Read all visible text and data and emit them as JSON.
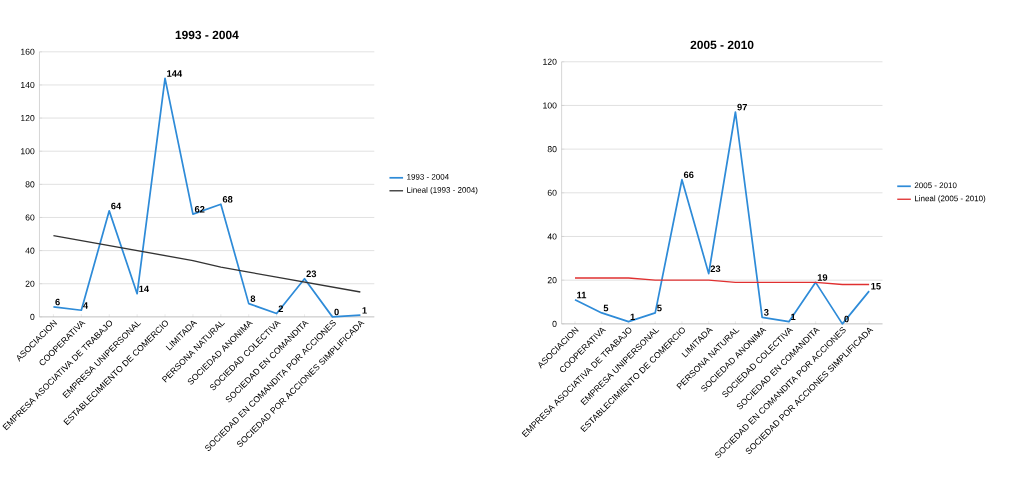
{
  "chart_data": [
    {
      "type": "line",
      "title": "1993 - 2004",
      "categories": [
        "ASOCIACION",
        "COOPERATIVA",
        "EMPRESA ASOCIATIVA DE TRABAJO",
        "EMPRESA UNIPERSONAL",
        "ESTABLECIMIENTO DE COMERCIO",
        "LIMITADA",
        "PERSONA NATURAL",
        "SOCIEDAD ANONIMA",
        "SOCIEDAD COLECTIVA",
        "SOCIEDAD EN COMANDITA",
        "SOCIEDAD EN COMANDITA POR ACCIONES",
        "SOCIEDAD POR ACCIONES SIMPLIFICADA"
      ],
      "series": [
        {
          "name": "1993 - 2004",
          "color": "#2e8bd8",
          "values": [
            6,
            4,
            64,
            14,
            144,
            62,
            68,
            8,
            2,
            23,
            0,
            1
          ],
          "value_labels": [
            "6",
            "4",
            "64",
            "14",
            "144",
            "62",
            "68",
            "8",
            "2",
            "23",
            "0",
            "1"
          ]
        },
        {
          "name": "Lineal (1993 - 2004)",
          "type": "line",
          "color": "#333333",
          "values": [
            49,
            46,
            43,
            40,
            37,
            34,
            30,
            27,
            24,
            21,
            18,
            15
          ]
        }
      ],
      "ylim": [
        0,
        160
      ],
      "yticks": [
        0,
        20,
        40,
        60,
        80,
        100,
        120,
        140,
        160
      ],
      "grid": "y",
      "legend": "right"
    },
    {
      "type": "line",
      "title": "2005 - 2010",
      "categories": [
        "ASOCIACION",
        "COOPERATIVA",
        "EMPRESA ASOCIATIVA DE TRABAJO",
        "EMPRESA UNIPERSONAL",
        "ESTABLECIMIENTO DE COMERCIO",
        "LIMITADA",
        "PERSONA NATURAL",
        "SOCIEDAD ANONIMA",
        "SOCIEDAD COLECTIVA",
        "SOCIEDAD EN COMANDITA",
        "SOCIEDAD EN COMANDITA POR ACCIONES",
        "SOCIEDAD POR ACCIONES SIMPLIFICADA"
      ],
      "series": [
        {
          "name": "2005 - 2010",
          "color": "#2e8bd8",
          "values": [
            11,
            5,
            1,
            5,
            66,
            23,
            97,
            3,
            1,
            19,
            0,
            15
          ],
          "value_labels": [
            "11",
            "5",
            "1",
            "5",
            "66",
            "23",
            "97",
            "3",
            "1",
            "19",
            "0",
            "15"
          ]
        },
        {
          "name": "Lineal (2005 - 2010)",
          "type": "line",
          "color": "#e03030",
          "values": [
            21,
            21,
            21,
            20,
            20,
            20,
            19,
            19,
            19,
            19,
            18,
            18
          ]
        }
      ],
      "ylim": [
        0,
        120
      ],
      "yticks": [
        0,
        20,
        40,
        60,
        80,
        100,
        120
      ],
      "grid": "y",
      "legend": "right"
    }
  ]
}
